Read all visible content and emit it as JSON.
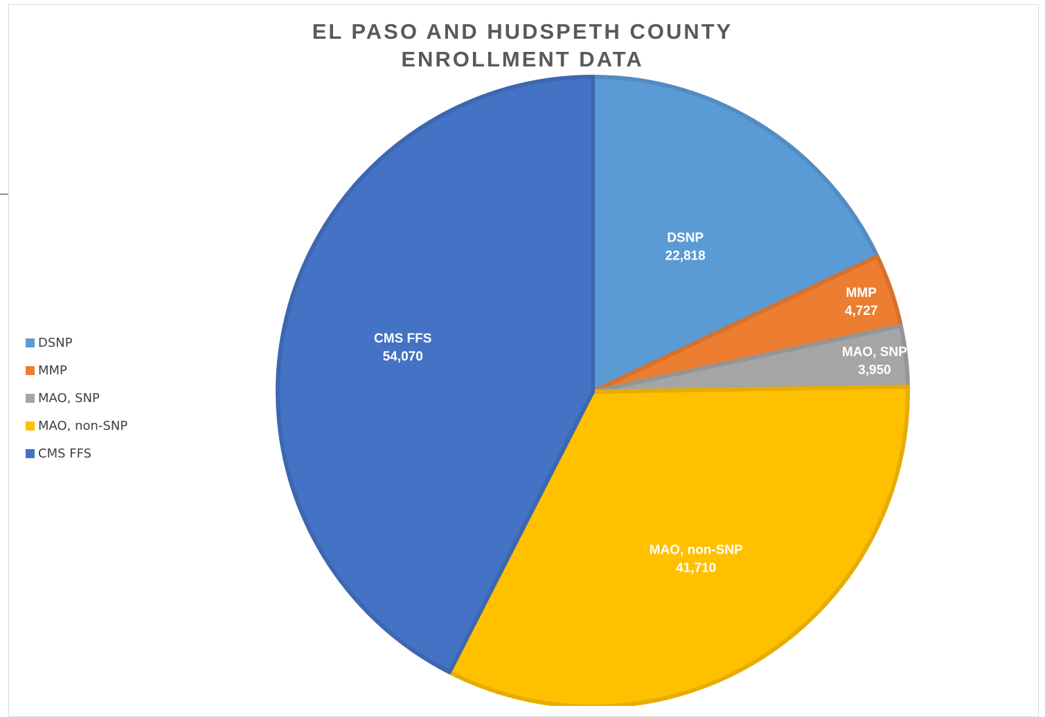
{
  "colors": {
    "DSNP": "#5b9bd5",
    "MMP": "#ed7d31",
    "MAO, SNP": "#a5a5a5",
    "MAO, non-SNP": "#ffc000",
    "CMS FFS": "#4472c4"
  },
  "chart_data": {
    "type": "pie",
    "title": "EL PASO AND HUDSPETH COUNTY ENROLLMENT DATA",
    "title_lines": [
      "EL PASO AND HUDSPETH COUNTY",
      "ENROLLMENT DATA"
    ],
    "categories": [
      "DSNP",
      "MMP",
      "MAO, SNP",
      "MAO, non-SNP",
      "CMS FFS"
    ],
    "values": [
      22818,
      4727,
      3950,
      41710,
      54070
    ],
    "value_labels": [
      "22,818",
      "4,727",
      "3,950",
      "41,710",
      "54,070"
    ],
    "start_angle": "12 o'clock",
    "direction": "clockwise",
    "legend_position": "left"
  }
}
